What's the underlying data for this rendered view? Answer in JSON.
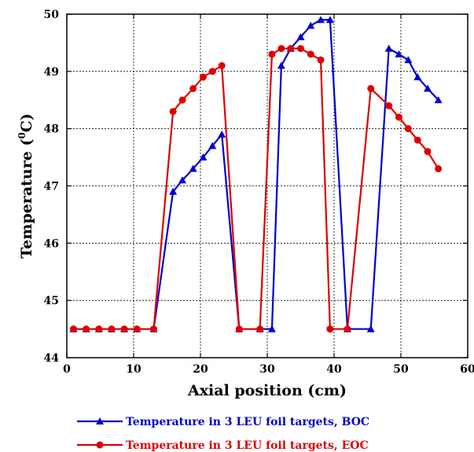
{
  "chart_data": {
    "type": "line",
    "xlabel": "Axial position (cm)",
    "ylabel_main": "Temperature (",
    "ylabel_sup": "0",
    "ylabel_tail": "C)",
    "xlim": [
      0,
      60
    ],
    "ylim": [
      44,
      50
    ],
    "xticks": [
      0,
      10,
      20,
      30,
      40,
      50,
      60
    ],
    "yticks": [
      44,
      45,
      46,
      47,
      48,
      49,
      50
    ],
    "grid": true,
    "legend_position": "bottom",
    "series": [
      {
        "name": "Temperature in 3 LEU foil targets, BOC",
        "color": "#0000cc",
        "marker": "triangle",
        "x": [
          1.0,
          2.9,
          4.8,
          6.7,
          8.6,
          10.5,
          13.0,
          15.9,
          17.3,
          18.9,
          20.4,
          21.8,
          23.2,
          25.8,
          28.9,
          30.7,
          32.1,
          33.5,
          35.0,
          36.5,
          38.0,
          39.4,
          42.0,
          45.5,
          48.2,
          49.7,
          51.1,
          52.5,
          54.0,
          55.6
        ],
        "y": [
          44.5,
          44.5,
          44.5,
          44.5,
          44.5,
          44.5,
          44.5,
          46.9,
          47.1,
          47.3,
          47.5,
          47.7,
          47.9,
          44.5,
          44.5,
          44.5,
          49.1,
          49.4,
          49.6,
          49.8,
          49.9,
          49.9,
          44.5,
          44.5,
          49.4,
          49.3,
          49.2,
          48.9,
          48.7,
          48.5
        ]
      },
      {
        "name": "Temperature in 3 LEU foil targets, EOC",
        "color": "#dd0000",
        "marker": "circle",
        "x": [
          1.0,
          2.9,
          4.8,
          6.7,
          8.6,
          10.5,
          13.0,
          15.9,
          17.3,
          18.9,
          20.4,
          21.8,
          23.2,
          25.8,
          28.9,
          30.7,
          32.1,
          33.5,
          35.0,
          36.5,
          38.0,
          39.4,
          42.0,
          45.5,
          48.2,
          49.7,
          51.1,
          52.5,
          54.0,
          55.6
        ],
        "y": [
          44.5,
          44.5,
          44.5,
          44.5,
          44.5,
          44.5,
          44.5,
          48.3,
          48.5,
          48.7,
          48.9,
          49.0,
          49.1,
          44.5,
          44.5,
          49.3,
          49.4,
          49.4,
          49.4,
          49.3,
          49.2,
          44.5,
          44.5,
          48.7,
          48.4,
          48.2,
          48.0,
          47.8,
          47.6,
          47.3
        ]
      }
    ]
  }
}
